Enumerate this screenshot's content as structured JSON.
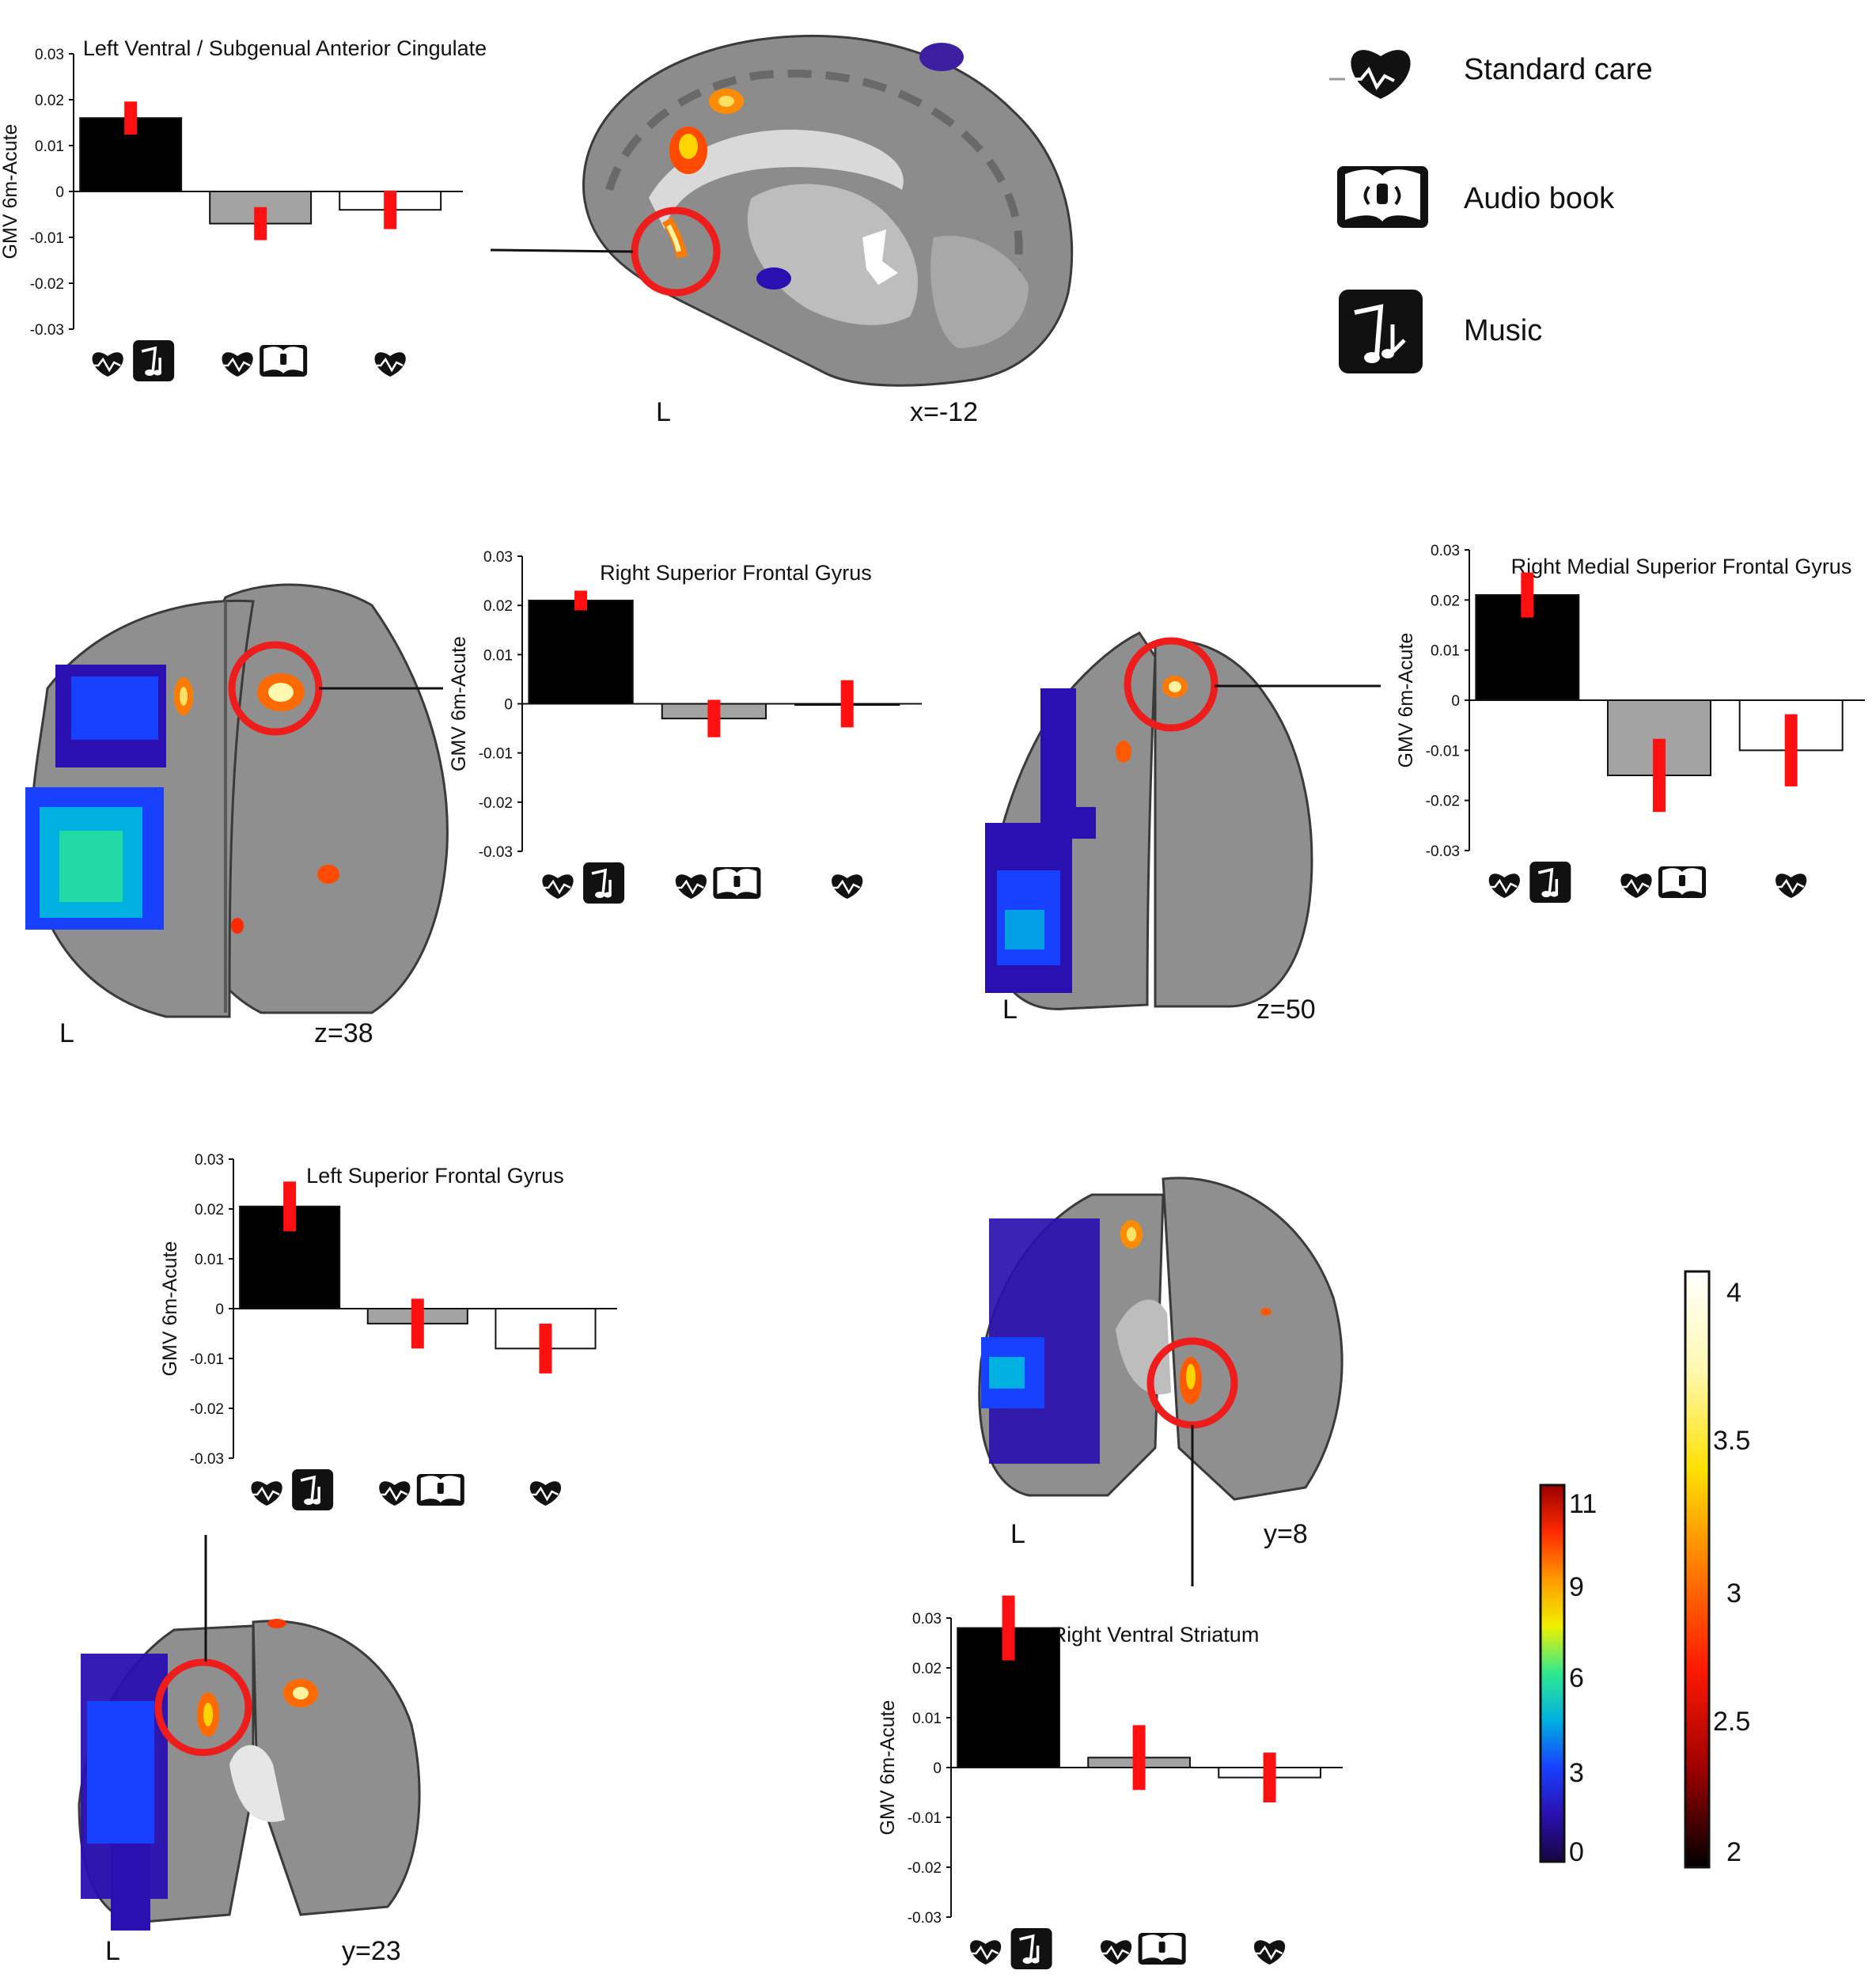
{
  "legend": {
    "items": [
      {
        "label": "Standard care",
        "icon": "heart-ecg-icon"
      },
      {
        "label": "Audio book",
        "icon": "audio-book-icon"
      },
      {
        "label": "Music",
        "icon": "music-notes-icon"
      }
    ]
  },
  "brain_slices": [
    {
      "view": "sagittal",
      "side_label": "L",
      "coord_label": "x=-12"
    },
    {
      "view": "axial",
      "side_label": "L",
      "coord_label": "z=38"
    },
    {
      "view": "axial",
      "side_label": "L",
      "coord_label": "z=50"
    },
    {
      "view": "coronal",
      "side_label": "L",
      "coord_label": "y=8"
    },
    {
      "view": "coronal",
      "side_label": "L",
      "coord_label": "y=23"
    }
  ],
  "colorbars": [
    {
      "ticks": [
        "11",
        "9",
        "6",
        "3",
        "0"
      ],
      "colors": [
        "#9b0000",
        "#ff2a00",
        "#ff9a00",
        "#f0f000",
        "#30e890",
        "#00b0e0",
        "#1840ff",
        "#2a10b0",
        "#160640"
      ]
    },
    {
      "ticks": [
        "4",
        "3.5",
        "3",
        "2.5",
        "2"
      ],
      "colors": [
        "#ffffff",
        "#fff8b0",
        "#ffe000",
        "#ff7a00",
        "#ff1a00",
        "#a00000",
        "#000000"
      ]
    }
  ],
  "chart_data": [
    {
      "type": "bar",
      "title": "Left Ventral / Subgenual Anterior Cingulate",
      "ylabel": "GMV 6m-Acute",
      "ylim": [
        -0.03,
        0.03
      ],
      "yticks": [
        "0.03",
        "0.02",
        "0.01",
        "0",
        "-0.01",
        "-0.02",
        "-0.03"
      ],
      "categories": [
        "Standard care + Music",
        "Standard care + Audio book",
        "Standard care"
      ],
      "values": [
        0.016,
        -0.007,
        -0.004
      ],
      "error": [
        0.0036,
        0.0036,
        0.0042
      ],
      "bar_colors": [
        "#000000",
        "#a3a3a3",
        "#ffffff"
      ]
    },
    {
      "type": "bar",
      "title": "Right Superior Frontal Gyrus",
      "ylabel": "GMV 6m-Acute",
      "ylim": [
        -0.03,
        0.03
      ],
      "yticks": [
        "0.03",
        "0.02",
        "0.01",
        "0",
        "-0.01",
        "-0.02",
        "-0.03"
      ],
      "categories": [
        "Standard care + Music",
        "Standard care + Audio book",
        "Standard care"
      ],
      "values": [
        0.021,
        -0.003,
        0.0
      ],
      "error": [
        0.002,
        0.0038,
        0.0048
      ],
      "bar_colors": [
        "#000000",
        "#a3a3a3",
        "#ffffff"
      ]
    },
    {
      "type": "bar",
      "title": "Right Medial Superior Frontal Gyrus",
      "ylabel": "GMV  6m-Acute",
      "ylim": [
        -0.03,
        0.03
      ],
      "yticks": [
        "0.03",
        "0.02",
        "0.01",
        "0",
        "-0.01",
        "-0.02",
        "-0.03"
      ],
      "categories": [
        "Standard care + Music",
        "Standard care + Audio book",
        "Standard care"
      ],
      "values": [
        0.021,
        -0.015,
        -0.01
      ],
      "error": [
        0.0045,
        0.0073,
        0.0072
      ],
      "bar_colors": [
        "#000000",
        "#a3a3a3",
        "#ffffff"
      ]
    },
    {
      "type": "bar",
      "title": "Left Superior Frontal Gyrus",
      "ylabel": "GMV 6m-Acute",
      "ylim": [
        -0.03,
        0.03
      ],
      "yticks": [
        "0.03",
        "0.02",
        "0.01",
        "0",
        "-0.01",
        "-0.02",
        "-0.03"
      ],
      "categories": [
        "Standard care + Music",
        "Standard care + Audio book",
        "Standard care"
      ],
      "values": [
        0.0205,
        -0.003,
        -0.008
      ],
      "error": [
        0.005,
        0.005,
        0.005
      ],
      "bar_colors": [
        "#000000",
        "#a3a3a3",
        "#ffffff"
      ]
    },
    {
      "type": "bar",
      "title": "Right Ventral Striatum",
      "ylabel": "GMV 6m-Acute",
      "ylim": [
        -0.03,
        0.03
      ],
      "yticks": [
        "0.03",
        "0.02",
        "0.01",
        "0",
        "-0.01",
        "-0.02",
        "-0.03"
      ],
      "categories": [
        "Standard care + Music",
        "Standard care + Audio book",
        "Standard care"
      ],
      "values": [
        0.028,
        0.002,
        -0.002
      ],
      "error": [
        0.0065,
        0.0065,
        0.005
      ],
      "bar_colors": [
        "#000000",
        "#a3a3a3",
        "#ffffff"
      ]
    }
  ]
}
